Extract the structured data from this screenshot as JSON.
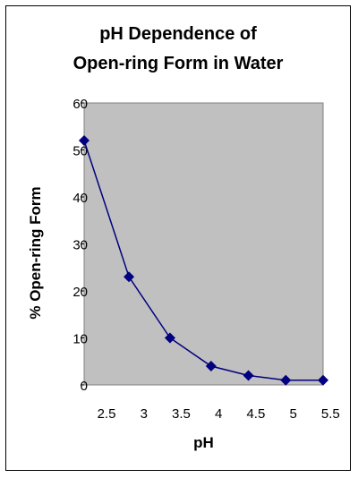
{
  "chart_data": {
    "type": "line",
    "title_line1": "pH Dependence of",
    "title_line2": "Open-ring Form in Water",
    "xlabel": "pH",
    "ylabel": "% Open-ring Form",
    "x": [
      2.2,
      2.8,
      3.35,
      3.9,
      4.4,
      4.9,
      5.4
    ],
    "y": [
      52,
      23,
      10,
      4,
      2,
      1,
      1
    ],
    "xlim": [
      2.2,
      5.4
    ],
    "ylim": [
      0,
      60
    ],
    "xticks": [
      2.5,
      3,
      3.5,
      4,
      4.5,
      5,
      5.5
    ],
    "xtick_labels": [
      "2.5",
      "3",
      "3.5",
      "4",
      "4.5",
      "5",
      "5.5"
    ],
    "yticks": [
      0,
      10,
      20,
      30,
      40,
      50,
      60
    ],
    "ytick_labels": [
      "0",
      "10",
      "20",
      "30",
      "40",
      "50",
      "60"
    ],
    "grid": false,
    "colors": {
      "plot_area": "#C0C0C0",
      "series": "#000080"
    }
  }
}
